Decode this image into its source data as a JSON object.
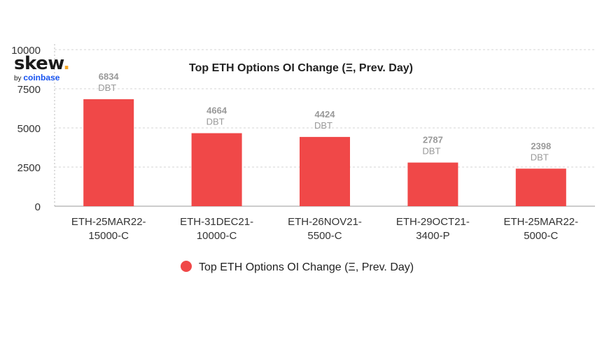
{
  "logo": {
    "main": "skew",
    "dot": ".",
    "by": "by",
    "brand": "coinbase"
  },
  "chart_data": {
    "type": "bar",
    "title": "Top ETH Options OI Change (Ξ, Prev. Day)",
    "categories": [
      [
        "ETH-25MAR22-",
        "15000-C"
      ],
      [
        "ETH-31DEC21-",
        "10000-C"
      ],
      [
        "ETH-26NOV21-",
        "5500-C"
      ],
      [
        "ETH-29OCT21-",
        "3400-P"
      ],
      [
        "ETH-25MAR22-",
        "5000-C"
      ]
    ],
    "series": [
      {
        "name": "Top ETH Options OI Change (Ξ, Prev. Day)",
        "values": [
          6834,
          4664,
          4424,
          2787,
          2398
        ],
        "color": "#f04848"
      }
    ],
    "data_label_unit": "DBT",
    "ylim": [
      0,
      10000
    ],
    "yticks": [
      "0",
      "2500",
      "5000",
      "7500",
      "10000"
    ],
    "grid": true,
    "legend": "bottom-center"
  }
}
